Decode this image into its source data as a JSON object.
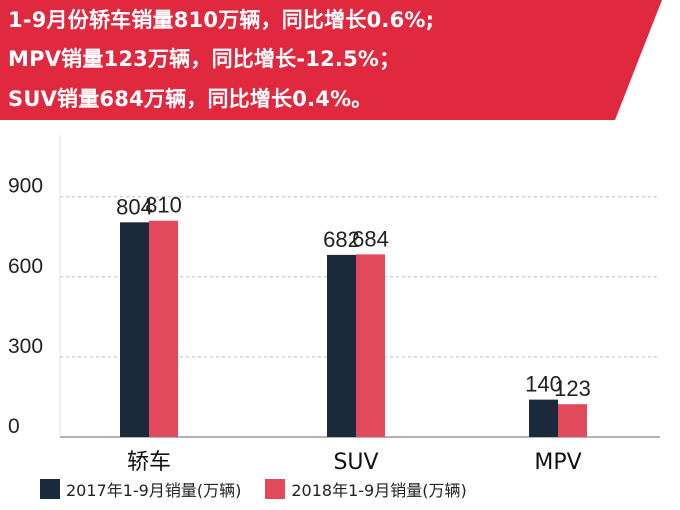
{
  "headline": {
    "lines": [
      "1-9月份轿车销量810万辆，同比增长0.6%;",
      "MPV销量123万辆，同比增长-12.5%；",
      "SUV销量684万辆，同比增长0.4%。"
    ]
  },
  "colors": {
    "banner": "#e0283f",
    "series_2017": "#1a2a3a",
    "series_2018": "#e04a5a",
    "grid": "#bfbfbf"
  },
  "legend": {
    "items": [
      "2017年1-9月销量(万辆)",
      "2018年1-9月销量(万辆)"
    ]
  },
  "chart_data": {
    "type": "bar",
    "categories": [
      "轿车",
      "SUV",
      "MPV"
    ],
    "series": [
      {
        "name": "2017年1-9月销量(万辆)",
        "values": [
          804,
          682,
          140
        ]
      },
      {
        "name": "2018年1-9月销量(万辆)",
        "values": [
          810,
          684,
          123
        ]
      }
    ],
    "yticks": [
      0,
      300,
      600,
      900
    ],
    "ylim": [
      0,
      1000
    ],
    "grid": true,
    "legend_position": "bottom",
    "xlabel": "",
    "ylabel": ""
  }
}
